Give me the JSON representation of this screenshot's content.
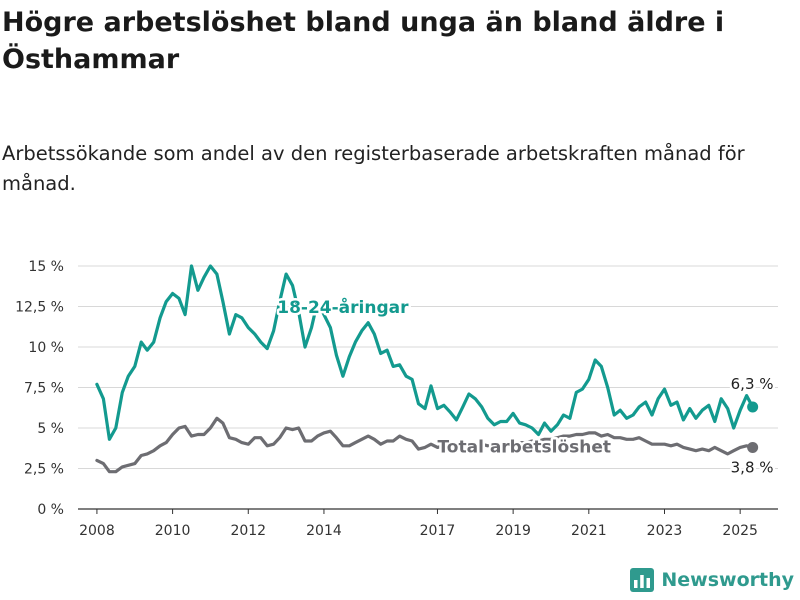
{
  "title": "Högre arbetslöshet bland unga än bland äldre i Östhammar",
  "subtitle": "Arbetssökande som andel av den registerbaserade arbetskraften månad för månad.",
  "brand": {
    "name": "Newsworthy",
    "icon": "bar-chart-logo-icon"
  },
  "colors": {
    "youth": "#139a8f",
    "total": "#6d6d72",
    "grid": "#d8d8d8",
    "text": "#222222",
    "brand": "#2f9a8e"
  },
  "chart_data": {
    "type": "line",
    "x_tick_labels": [
      "2008",
      "2010",
      "2012",
      "2014",
      "2017",
      "2019",
      "2021",
      "2023",
      "2025"
    ],
    "y_tick_labels": [
      "0 %",
      "2,5 %",
      "5 %",
      "7,5 %",
      "10 %",
      "12,5 %",
      "15 %"
    ],
    "ylim": [
      0,
      15
    ],
    "grid": true,
    "series": [
      {
        "name": "18-24-åringar",
        "end_label": "6,3 %",
        "points": [
          [
            2008.0,
            7.7
          ],
          [
            2008.17,
            6.8
          ],
          [
            2008.33,
            4.3
          ],
          [
            2008.5,
            5.0
          ],
          [
            2008.67,
            7.2
          ],
          [
            2008.83,
            8.2
          ],
          [
            2009.0,
            8.8
          ],
          [
            2009.17,
            10.3
          ],
          [
            2009.33,
            9.8
          ],
          [
            2009.5,
            10.3
          ],
          [
            2009.67,
            11.8
          ],
          [
            2009.83,
            12.8
          ],
          [
            2010.0,
            13.3
          ],
          [
            2010.17,
            13.0
          ],
          [
            2010.33,
            12.0
          ],
          [
            2010.5,
            15.0
          ],
          [
            2010.67,
            13.5
          ],
          [
            2010.83,
            14.3
          ],
          [
            2011.0,
            15.0
          ],
          [
            2011.17,
            14.5
          ],
          [
            2011.33,
            12.8
          ],
          [
            2011.5,
            10.8
          ],
          [
            2011.67,
            12.0
          ],
          [
            2011.83,
            11.8
          ],
          [
            2012.0,
            11.2
          ],
          [
            2012.17,
            10.8
          ],
          [
            2012.33,
            10.3
          ],
          [
            2012.5,
            9.9
          ],
          [
            2012.67,
            11.0
          ],
          [
            2012.83,
            12.8
          ],
          [
            2013.0,
            14.5
          ],
          [
            2013.17,
            13.8
          ],
          [
            2013.33,
            12.2
          ],
          [
            2013.5,
            10.0
          ],
          [
            2013.67,
            11.2
          ],
          [
            2013.83,
            12.8
          ],
          [
            2014.0,
            12.0
          ],
          [
            2014.17,
            11.2
          ],
          [
            2014.33,
            9.5
          ],
          [
            2014.5,
            8.2
          ],
          [
            2014.67,
            9.4
          ],
          [
            2014.83,
            10.3
          ],
          [
            2015.0,
            11.0
          ],
          [
            2015.17,
            11.5
          ],
          [
            2015.33,
            10.8
          ],
          [
            2015.5,
            9.6
          ],
          [
            2015.67,
            9.8
          ],
          [
            2015.83,
            8.8
          ],
          [
            2016.0,
            8.9
          ],
          [
            2016.17,
            8.2
          ],
          [
            2016.33,
            8.0
          ],
          [
            2016.5,
            6.5
          ],
          [
            2016.67,
            6.2
          ],
          [
            2016.83,
            7.6
          ],
          [
            2017.0,
            6.2
          ],
          [
            2017.17,
            6.4
          ],
          [
            2017.33,
            6.0
          ],
          [
            2017.5,
            5.5
          ],
          [
            2017.67,
            6.3
          ],
          [
            2017.83,
            7.1
          ],
          [
            2018.0,
            6.8
          ],
          [
            2018.17,
            6.3
          ],
          [
            2018.33,
            5.6
          ],
          [
            2018.5,
            5.2
          ],
          [
            2018.67,
            5.4
          ],
          [
            2018.83,
            5.4
          ],
          [
            2019.0,
            5.9
          ],
          [
            2019.17,
            5.3
          ],
          [
            2019.33,
            5.2
          ],
          [
            2019.5,
            5.0
          ],
          [
            2019.67,
            4.6
          ],
          [
            2019.83,
            5.3
          ],
          [
            2020.0,
            4.8
          ],
          [
            2020.17,
            5.2
          ],
          [
            2020.33,
            5.8
          ],
          [
            2020.5,
            5.6
          ],
          [
            2020.67,
            7.2
          ],
          [
            2020.83,
            7.4
          ],
          [
            2021.0,
            8.0
          ],
          [
            2021.17,
            9.2
          ],
          [
            2021.33,
            8.8
          ],
          [
            2021.5,
            7.5
          ],
          [
            2021.67,
            5.8
          ],
          [
            2021.83,
            6.1
          ],
          [
            2022.0,
            5.6
          ],
          [
            2022.17,
            5.8
          ],
          [
            2022.33,
            6.3
          ],
          [
            2022.5,
            6.6
          ],
          [
            2022.67,
            5.8
          ],
          [
            2022.83,
            6.8
          ],
          [
            2023.0,
            7.4
          ],
          [
            2023.17,
            6.4
          ],
          [
            2023.33,
            6.6
          ],
          [
            2023.5,
            5.5
          ],
          [
            2023.67,
            6.2
          ],
          [
            2023.83,
            5.6
          ],
          [
            2024.0,
            6.1
          ],
          [
            2024.17,
            6.4
          ],
          [
            2024.33,
            5.4
          ],
          [
            2024.5,
            6.8
          ],
          [
            2024.67,
            6.2
          ],
          [
            2024.83,
            5.0
          ],
          [
            2025.0,
            6.1
          ],
          [
            2025.17,
            7.0
          ],
          [
            2025.33,
            6.3
          ]
        ]
      },
      {
        "name": "Total arbetslöshet",
        "end_label": "3,8 %",
        "points": [
          [
            2008.0,
            3.0
          ],
          [
            2008.17,
            2.8
          ],
          [
            2008.33,
            2.3
          ],
          [
            2008.5,
            2.3
          ],
          [
            2008.67,
            2.6
          ],
          [
            2008.83,
            2.7
          ],
          [
            2009.0,
            2.8
          ],
          [
            2009.17,
            3.3
          ],
          [
            2009.33,
            3.4
          ],
          [
            2009.5,
            3.6
          ],
          [
            2009.67,
            3.9
          ],
          [
            2009.83,
            4.1
          ],
          [
            2010.0,
            4.6
          ],
          [
            2010.17,
            5.0
          ],
          [
            2010.33,
            5.1
          ],
          [
            2010.5,
            4.5
          ],
          [
            2010.67,
            4.6
          ],
          [
            2010.83,
            4.6
          ],
          [
            2011.0,
            5.0
          ],
          [
            2011.17,
            5.6
          ],
          [
            2011.33,
            5.3
          ],
          [
            2011.5,
            4.4
          ],
          [
            2011.67,
            4.3
          ],
          [
            2011.83,
            4.1
          ],
          [
            2012.0,
            4.0
          ],
          [
            2012.17,
            4.4
          ],
          [
            2012.33,
            4.4
          ],
          [
            2012.5,
            3.9
          ],
          [
            2012.67,
            4.0
          ],
          [
            2012.83,
            4.4
          ],
          [
            2013.0,
            5.0
          ],
          [
            2013.17,
            4.9
          ],
          [
            2013.33,
            5.0
          ],
          [
            2013.5,
            4.2
          ],
          [
            2013.67,
            4.2
          ],
          [
            2013.83,
            4.5
          ],
          [
            2014.0,
            4.7
          ],
          [
            2014.17,
            4.8
          ],
          [
            2014.33,
            4.4
          ],
          [
            2014.5,
            3.9
          ],
          [
            2014.67,
            3.9
          ],
          [
            2014.83,
            4.1
          ],
          [
            2015.0,
            4.3
          ],
          [
            2015.17,
            4.5
          ],
          [
            2015.33,
            4.3
          ],
          [
            2015.5,
            4.0
          ],
          [
            2015.67,
            4.2
          ],
          [
            2015.83,
            4.2
          ],
          [
            2016.0,
            4.5
          ],
          [
            2016.17,
            4.3
          ],
          [
            2016.33,
            4.2
          ],
          [
            2016.5,
            3.7
          ],
          [
            2016.67,
            3.8
          ],
          [
            2016.83,
            4.0
          ],
          [
            2017.0,
            3.8
          ],
          [
            2017.17,
            3.9
          ],
          [
            2017.33,
            3.9
          ],
          [
            2017.5,
            3.8
          ],
          [
            2017.67,
            3.7
          ],
          [
            2017.83,
            4.0
          ],
          [
            2018.0,
            4.0
          ],
          [
            2018.17,
            4.0
          ],
          [
            2018.33,
            3.9
          ],
          [
            2018.5,
            3.9
          ],
          [
            2018.67,
            4.0
          ],
          [
            2018.83,
            4.0
          ],
          [
            2019.0,
            4.1
          ],
          [
            2019.17,
            4.1
          ],
          [
            2019.33,
            4.1
          ],
          [
            2019.5,
            4.2
          ],
          [
            2019.67,
            4.2
          ],
          [
            2019.83,
            4.3
          ],
          [
            2020.0,
            4.3
          ],
          [
            2020.17,
            4.4
          ],
          [
            2020.33,
            4.5
          ],
          [
            2020.5,
            4.5
          ],
          [
            2020.67,
            4.6
          ],
          [
            2020.83,
            4.6
          ],
          [
            2021.0,
            4.7
          ],
          [
            2021.17,
            4.7
          ],
          [
            2021.33,
            4.5
          ],
          [
            2021.5,
            4.6
          ],
          [
            2021.67,
            4.4
          ],
          [
            2021.83,
            4.4
          ],
          [
            2022.0,
            4.3
          ],
          [
            2022.17,
            4.3
          ],
          [
            2022.33,
            4.4
          ],
          [
            2022.5,
            4.2
          ],
          [
            2022.67,
            4.0
          ],
          [
            2022.83,
            4.0
          ],
          [
            2023.0,
            4.0
          ],
          [
            2023.17,
            3.9
          ],
          [
            2023.33,
            4.0
          ],
          [
            2023.5,
            3.8
          ],
          [
            2023.67,
            3.7
          ],
          [
            2023.83,
            3.6
          ],
          [
            2024.0,
            3.7
          ],
          [
            2024.17,
            3.6
          ],
          [
            2024.33,
            3.8
          ],
          [
            2024.5,
            3.6
          ],
          [
            2024.67,
            3.4
          ],
          [
            2024.83,
            3.6
          ],
          [
            2025.0,
            3.8
          ],
          [
            2025.17,
            3.9
          ],
          [
            2025.33,
            3.8
          ]
        ]
      }
    ]
  }
}
